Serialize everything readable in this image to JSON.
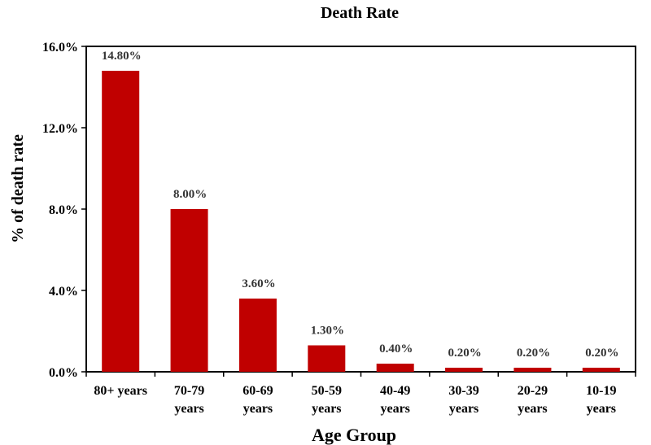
{
  "chart_data": {
    "type": "bar",
    "title": "Death Rate",
    "xlabel": "Age Group",
    "ylabel": "% of death rate",
    "categories": [
      [
        "80+ years"
      ],
      [
        "70-79",
        "years"
      ],
      [
        "60-69",
        "years"
      ],
      [
        "50-59",
        "years"
      ],
      [
        "40-49",
        "years"
      ],
      [
        "30-39",
        "years"
      ],
      [
        "20-29",
        "years"
      ],
      [
        "10-19",
        "years"
      ]
    ],
    "values": [
      14.8,
      8.0,
      3.6,
      1.3,
      0.4,
      0.2,
      0.2,
      0.2
    ],
    "data_labels": [
      "14.80%",
      "8.00%",
      "3.60%",
      "1.30%",
      "0.40%",
      "0.20%",
      "0.20%",
      "0.20%"
    ],
    "y_ticks": [
      0,
      4,
      8,
      12,
      16
    ],
    "y_tick_labels": [
      "0.0%",
      "4.0%",
      "8.0%",
      "12.0%",
      "16.0%"
    ],
    "ylim": [
      0,
      16
    ],
    "grid": false,
    "legend": "none",
    "bar_color": "#C00000"
  }
}
